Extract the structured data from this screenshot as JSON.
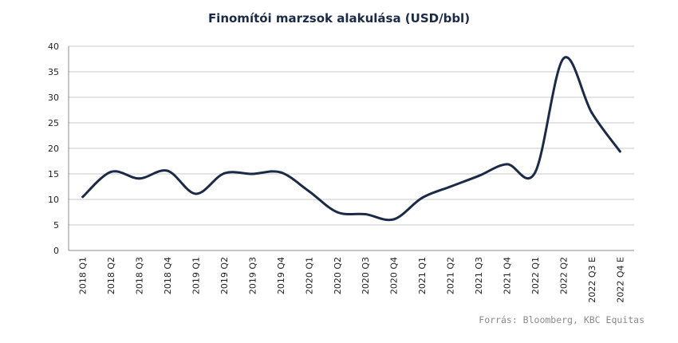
{
  "chart_data": {
    "type": "line",
    "title": "Finomítói marzsok alakulása (USD/bbl)",
    "categories": [
      "2018 Q1",
      "2018 Q2",
      "2018 Q3",
      "2018 Q4",
      "2019 Q1",
      "2019 Q2",
      "2019 Q3",
      "2019 Q4",
      "2020 Q1",
      "2020 Q2",
      "2020 Q3",
      "2020 Q4",
      "2021 Q1",
      "2021 Q2",
      "2021 Q3",
      "2021 Q4",
      "2022 Q1",
      "2022 Q2",
      "2022 Q3 E",
      "2022 Q4 E"
    ],
    "series": [
      {
        "values": [
          10.5,
          15.4,
          14.1,
          15.6,
          11.1,
          15.1,
          15.0,
          15.3,
          11.6,
          7.5,
          7.1,
          6.1,
          10.3,
          12.5,
          14.6,
          16.9,
          15.3,
          37.6,
          27.0,
          19.4
        ]
      }
    ],
    "ylim": [
      0,
      40
    ],
    "yticks": [
      0,
      5,
      10,
      15,
      20,
      25,
      30,
      35,
      40
    ],
    "grid": true,
    "line_color": "#1b2a47"
  },
  "source": "Forrás: Bloomberg, KBC Equitas"
}
